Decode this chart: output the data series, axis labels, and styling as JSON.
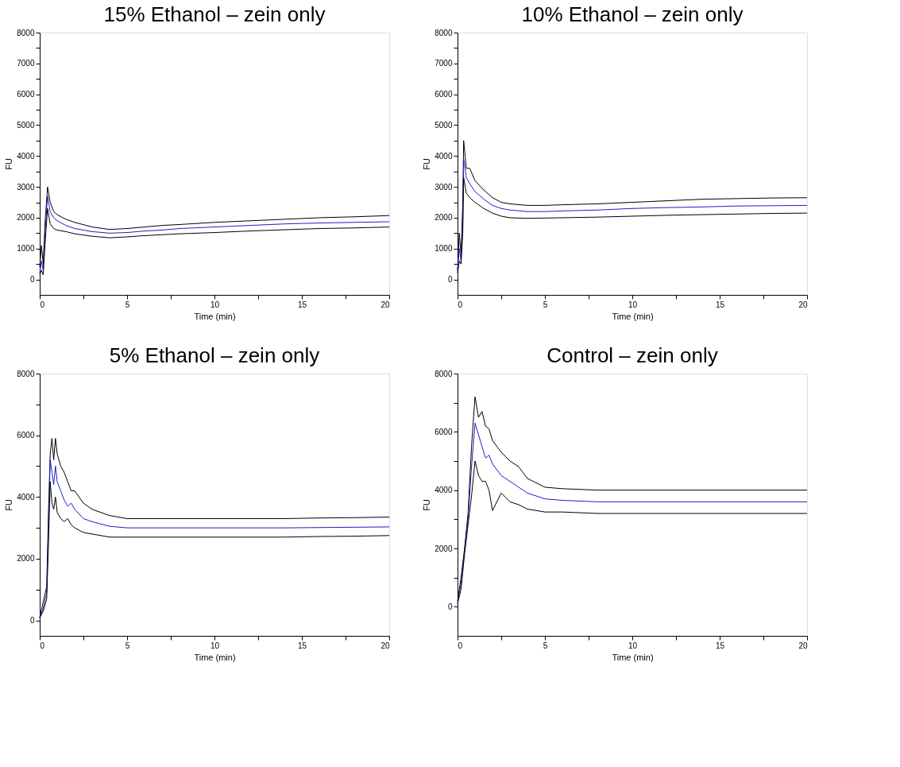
{
  "chart_data": [
    {
      "type": "line",
      "title": "15% Ethanol – zein only",
      "xlabel": "Time (min)",
      "ylabel": "FU",
      "xlim": [
        0,
        20
      ],
      "ylim": [
        -500,
        8000
      ],
      "xticks": [
        0,
        {
          "value": 2.5,
          "label": null
        },
        5,
        {
          "value": 7.5,
          "label": null
        },
        10,
        {
          "value": 12.5,
          "label": null
        },
        15,
        {
          "value": 17.5,
          "label": null
        },
        20
      ],
      "yticks": [
        0,
        {
          "value": 500,
          "label": null
        },
        1000,
        {
          "value": 1500,
          "label": null
        },
        2000,
        {
          "value": 2500,
          "label": null
        },
        3000,
        {
          "value": 3500,
          "label": null
        },
        4000,
        {
          "value": 4500,
          "label": null
        },
        5000,
        {
          "value": 5500,
          "label": null
        },
        6000,
        {
          "value": 6500,
          "label": null
        },
        7000,
        {
          "value": 7500,
          "label": null
        },
        8000
      ],
      "x": [
        0,
        0.1,
        0.2,
        0.3,
        0.45,
        0.6,
        0.8,
        1,
        1.5,
        2,
        3,
        4,
        5,
        6,
        7,
        8,
        10,
        12,
        14,
        16,
        18,
        20
      ],
      "series": [
        {
          "color": "#000000",
          "values": [
            400,
            1100,
            500,
            1800,
            3000,
            2500,
            2200,
            2100,
            1950,
            1850,
            1700,
            1620,
            1650,
            1700,
            1750,
            1780,
            1850,
            1900,
            1950,
            2000,
            2030,
            2070
          ]
        },
        {
          "color": "#1f1fbf",
          "values": [
            200,
            600,
            300,
            1500,
            2700,
            2200,
            2000,
            1900,
            1750,
            1650,
            1550,
            1500,
            1520,
            1570,
            1600,
            1650,
            1700,
            1750,
            1800,
            1830,
            1850,
            1870
          ]
        },
        {
          "color": "#000000",
          "values": [
            150,
            300,
            150,
            1100,
            2300,
            1800,
            1650,
            1600,
            1550,
            1480,
            1400,
            1350,
            1380,
            1420,
            1450,
            1480,
            1520,
            1570,
            1610,
            1650,
            1670,
            1700
          ]
        }
      ]
    },
    {
      "type": "line",
      "title": "10% Ethanol – zein only",
      "xlabel": "Time (min)",
      "ylabel": "FU",
      "xlim": [
        0,
        20
      ],
      "ylim": [
        -500,
        8000
      ],
      "xticks": [
        0,
        {
          "value": 2.5,
          "label": null
        },
        5,
        {
          "value": 7.5,
          "label": null
        },
        10,
        {
          "value": 12.5,
          "label": null
        },
        15,
        {
          "value": 17.5,
          "label": null
        },
        20
      ],
      "yticks": [
        0,
        {
          "value": 500,
          "label": null
        },
        1000,
        {
          "value": 1500,
          "label": null
        },
        2000,
        {
          "value": 2500,
          "label": null
        },
        3000,
        {
          "value": 3500,
          "label": null
        },
        4000,
        {
          "value": 4500,
          "label": null
        },
        5000,
        {
          "value": 5500,
          "label": null
        },
        6000,
        {
          "value": 6500,
          "label": null
        },
        7000,
        {
          "value": 7500,
          "label": null
        },
        8000
      ],
      "x": [
        0,
        0.1,
        0.2,
        0.3,
        0.35,
        0.5,
        0.7,
        1,
        1.5,
        2,
        2.5,
        3,
        4,
        5,
        6,
        8,
        10,
        12,
        14,
        16,
        18,
        20
      ],
      "series": [
        {
          "color": "#000000",
          "values": [
            300,
            1500,
            800,
            2500,
            4500,
            3600,
            3600,
            3200,
            2900,
            2650,
            2500,
            2450,
            2400,
            2400,
            2420,
            2450,
            2500,
            2550,
            2600,
            2620,
            2640,
            2650
          ]
        },
        {
          "color": "#1f1fbf",
          "values": [
            250,
            1000,
            600,
            2000,
            3900,
            3300,
            3100,
            2850,
            2600,
            2400,
            2300,
            2250,
            2200,
            2200,
            2220,
            2250,
            2300,
            2330,
            2350,
            2380,
            2390,
            2400
          ]
        },
        {
          "color": "#000000",
          "values": [
            200,
            600,
            500,
            1500,
            3300,
            2800,
            2650,
            2500,
            2300,
            2150,
            2050,
            2000,
            1980,
            1990,
            2000,
            2020,
            2050,
            2080,
            2100,
            2120,
            2140,
            2150
          ]
        }
      ]
    },
    {
      "type": "line",
      "title": "5% Ethanol – zein only",
      "xlabel": "Time (min)",
      "ylabel": "FU",
      "xlim": [
        0,
        20
      ],
      "ylim": [
        -500,
        8000
      ],
      "xticks": [
        0,
        {
          "value": 2.5,
          "label": null
        },
        5,
        {
          "value": 7.5,
          "label": null
        },
        10,
        {
          "value": 12.5,
          "label": null
        },
        15,
        {
          "value": 17.5,
          "label": null
        },
        20
      ],
      "yticks": [
        0,
        {
          "value": 1000,
          "label": null
        },
        2000,
        {
          "value": 3000,
          "label": null
        },
        4000,
        {
          "value": 5000,
          "label": null
        },
        6000,
        {
          "value": 7000,
          "label": null
        },
        8000
      ],
      "x": [
        0,
        0.2,
        0.4,
        0.5,
        0.6,
        0.7,
        0.8,
        0.9,
        1,
        1.2,
        1.4,
        1.6,
        1.8,
        2,
        2.5,
        3,
        4,
        5,
        6,
        8,
        10,
        12,
        14,
        16,
        18,
        20
      ],
      "series": [
        {
          "color": "#000000",
          "values": [
            100,
            600,
            1100,
            3500,
            5400,
            5900,
            5200,
            5900,
            5400,
            5000,
            4800,
            4500,
            4200,
            4200,
            3800,
            3600,
            3400,
            3300,
            3300,
            3300,
            3300,
            3300,
            3300,
            3320,
            3330,
            3350
          ]
        },
        {
          "color": "#1f1fbf",
          "values": [
            100,
            400,
            900,
            3000,
            5200,
            4800,
            4400,
            5000,
            4500,
            4200,
            3900,
            3700,
            3800,
            3600,
            3300,
            3200,
            3050,
            3000,
            3000,
            3000,
            3000,
            3000,
            3000,
            3010,
            3020,
            3030
          ]
        },
        {
          "color": "#000000",
          "values": [
            80,
            300,
            700,
            2500,
            4500,
            3800,
            3600,
            4000,
            3500,
            3300,
            3200,
            3300,
            3100,
            3000,
            2850,
            2800,
            2700,
            2700,
            2700,
            2700,
            2700,
            2700,
            2700,
            2720,
            2730,
            2750
          ]
        }
      ]
    },
    {
      "type": "line",
      "title": "Control – zein only",
      "xlabel": "Time (min)",
      "ylabel": "FU",
      "xlim": [
        0,
        20
      ],
      "ylim": [
        -1000,
        8000
      ],
      "xticks": [
        0,
        {
          "value": 2.5,
          "label": null
        },
        5,
        {
          "value": 7.5,
          "label": null
        },
        10,
        {
          "value": 12.5,
          "label": null
        },
        15,
        {
          "value": 17.5,
          "label": null
        },
        20
      ],
      "yticks": [
        0,
        {
          "value": 1000,
          "label": null
        },
        2000,
        {
          "value": 3000,
          "label": null
        },
        4000,
        {
          "value": 5000,
          "label": null
        },
        6000,
        {
          "value": 7000,
          "label": null
        },
        8000
      ],
      "x": [
        0,
        0.2,
        0.4,
        0.6,
        0.8,
        1,
        1.2,
        1.4,
        1.6,
        1.8,
        2,
        2.5,
        3,
        3.5,
        4,
        5,
        6,
        8,
        10,
        12,
        14,
        16,
        18,
        20
      ],
      "series": [
        {
          "color": "#000000",
          "values": [
            200,
            1000,
            2000,
            3200,
            5500,
            7200,
            6500,
            6700,
            6200,
            6100,
            5700,
            5300,
            5000,
            4800,
            4400,
            4100,
            4050,
            4000,
            4000,
            4000,
            4000,
            4000,
            4000,
            4000
          ]
        },
        {
          "color": "#1f1fbf",
          "values": [
            150,
            800,
            1900,
            3000,
            4800,
            6300,
            5900,
            5500,
            5100,
            5200,
            4900,
            4500,
            4300,
            4100,
            3900,
            3700,
            3650,
            3600,
            3600,
            3600,
            3600,
            3600,
            3600,
            3600
          ]
        },
        {
          "color": "#000000",
          "values": [
            100,
            600,
            1800,
            2800,
            3800,
            5000,
            4500,
            4300,
            4300,
            4000,
            3300,
            3900,
            3600,
            3500,
            3350,
            3250,
            3250,
            3200,
            3200,
            3200,
            3200,
            3200,
            3200,
            3200
          ]
        }
      ]
    }
  ]
}
